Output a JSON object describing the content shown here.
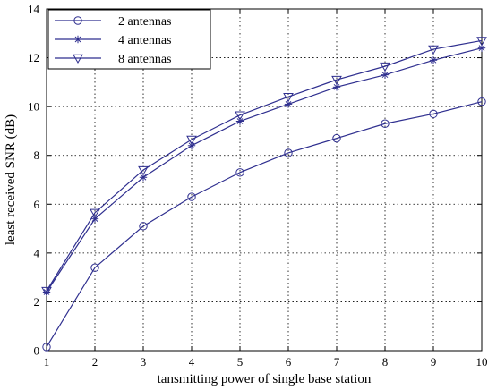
{
  "chart_data": {
    "type": "line",
    "title": "",
    "xlabel": "tansmitting power of single base station",
    "ylabel": "least received SNR (dB)",
    "xlim": [
      1,
      10
    ],
    "ylim": [
      0,
      14
    ],
    "xticks": [
      1,
      2,
      3,
      4,
      5,
      6,
      7,
      8,
      9,
      10
    ],
    "yticks": [
      0,
      2,
      4,
      6,
      8,
      10,
      12,
      14
    ],
    "grid": true,
    "legend_position": "top-left",
    "line_color": "#2f2f8f",
    "x": [
      1,
      2,
      3,
      4,
      5,
      6,
      7,
      8,
      9,
      10
    ],
    "series": [
      {
        "name": "2 antennas",
        "marker": "circle",
        "values": [
          0.15,
          3.4,
          5.1,
          6.3,
          7.3,
          8.1,
          8.7,
          9.3,
          9.7,
          10.2
        ]
      },
      {
        "name": "4 antennas",
        "marker": "star",
        "values": [
          2.4,
          5.4,
          7.1,
          8.4,
          9.4,
          10.1,
          10.8,
          11.3,
          11.9,
          12.4
        ]
      },
      {
        "name": "8 antennas",
        "marker": "triangle-down",
        "values": [
          2.45,
          5.65,
          7.4,
          8.65,
          9.65,
          10.4,
          11.1,
          11.65,
          12.35,
          12.7
        ]
      }
    ]
  }
}
